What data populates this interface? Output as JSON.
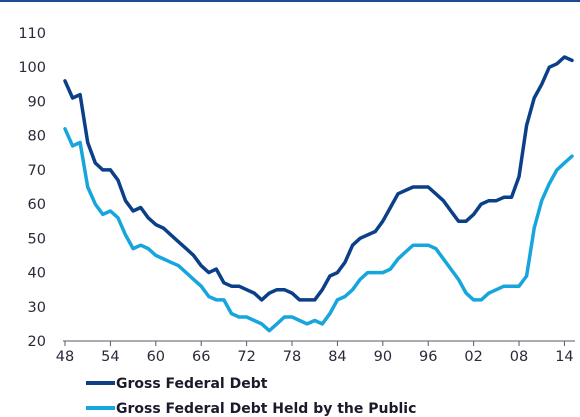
{
  "chart_data": {
    "type": "line",
    "title": "",
    "xlabel": "",
    "ylabel": "",
    "x_tick_labels": [
      "48",
      "54",
      "60",
      "66",
      "72",
      "78",
      "84",
      "90",
      "96",
      "02",
      "08",
      "14"
    ],
    "y_ticks": [
      20,
      30,
      40,
      50,
      60,
      70,
      80,
      90,
      100,
      110
    ],
    "xlim": [
      1948,
      2015
    ],
    "ylim": [
      20,
      110
    ],
    "legend_position": "bottom-left",
    "grid": false,
    "x": [
      1948,
      1949,
      1950,
      1951,
      1952,
      1953,
      1954,
      1955,
      1956,
      1957,
      1958,
      1959,
      1960,
      1961,
      1962,
      1963,
      1964,
      1965,
      1966,
      1967,
      1968,
      1969,
      1970,
      1971,
      1972,
      1973,
      1974,
      1975,
      1976,
      1977,
      1978,
      1979,
      1980,
      1981,
      1982,
      1983,
      1984,
      1985,
      1986,
      1987,
      1988,
      1989,
      1990,
      1991,
      1992,
      1993,
      1994,
      1995,
      1996,
      1997,
      1998,
      1999,
      2000,
      2001,
      2002,
      2003,
      2004,
      2005,
      2006,
      2007,
      2008,
      2009,
      2010,
      2011,
      2012,
      2013,
      2014,
      2015
    ],
    "series": [
      {
        "name": "Gross Federal Debt",
        "color": "#0b3f88",
        "values": [
          96,
          91,
          92,
          78,
          72,
          70,
          70,
          67,
          61,
          58,
          59,
          56,
          54,
          53,
          51,
          49,
          47,
          45,
          42,
          40,
          41,
          37,
          36,
          36,
          35,
          34,
          32,
          34,
          35,
          35,
          34,
          32,
          32,
          32,
          35,
          39,
          40,
          43,
          48,
          50,
          51,
          52,
          55,
          59,
          63,
          64,
          65,
          65,
          65,
          63,
          61,
          58,
          55,
          55,
          57,
          60,
          61,
          61,
          62,
          62,
          68,
          83,
          91,
          95,
          100,
          101,
          103,
          102
        ]
      },
      {
        "name": "Gross Federal Debt Held by the Public",
        "color": "#16a5dd",
        "values": [
          82,
          77,
          78,
          65,
          60,
          57,
          58,
          56,
          51,
          47,
          48,
          47,
          45,
          44,
          43,
          42,
          40,
          38,
          36,
          33,
          32,
          32,
          28,
          27,
          27,
          26,
          25,
          23,
          25,
          27,
          27,
          26,
          25,
          26,
          25,
          28,
          32,
          33,
          35,
          38,
          40,
          40,
          40,
          41,
          44,
          46,
          48,
          48,
          48,
          47,
          44,
          41,
          38,
          34,
          32,
          32,
          34,
          35,
          36,
          36,
          36,
          39,
          53,
          61,
          66,
          70,
          72,
          74
        ]
      }
    ]
  }
}
